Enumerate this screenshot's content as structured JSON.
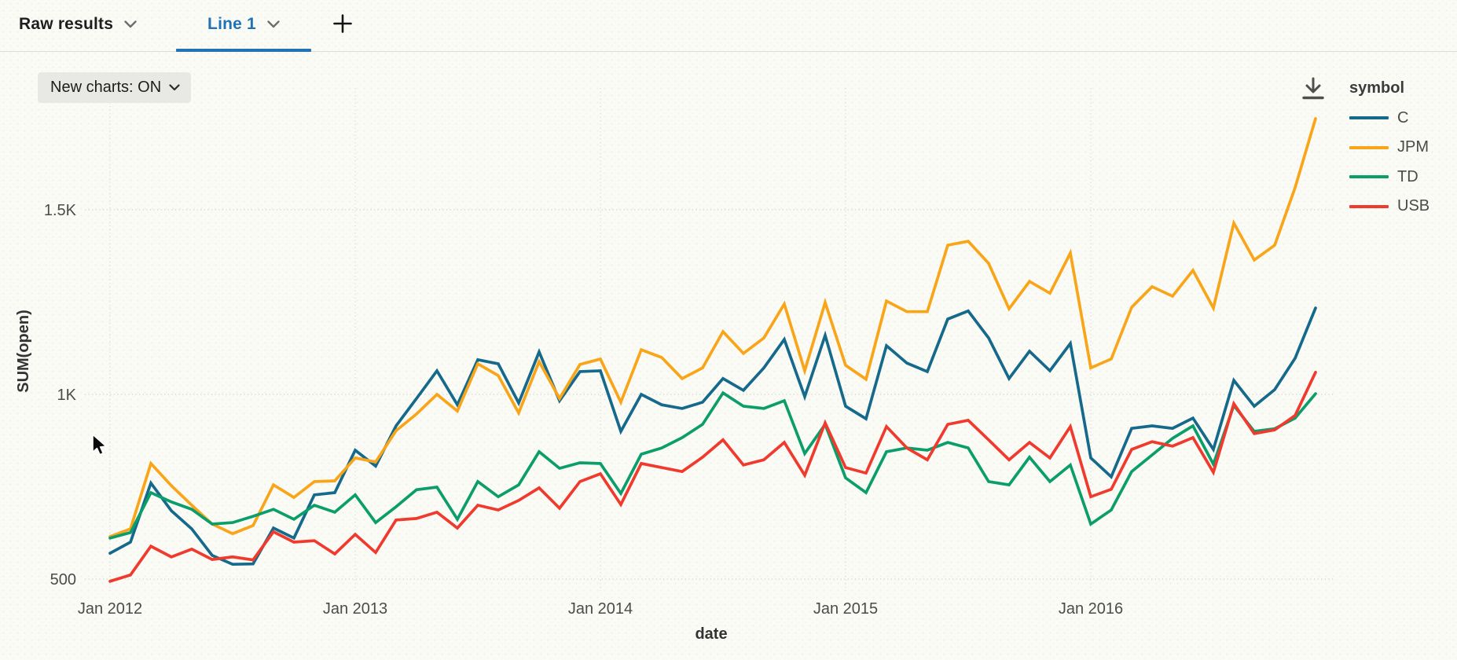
{
  "tabs": [
    {
      "label": "Raw results",
      "active": false
    },
    {
      "label": "Line 1",
      "active": true
    }
  ],
  "controls": {
    "new_charts_label": "New charts: ON",
    "add_tab_icon": "plus-icon",
    "download_icon": "download-icon"
  },
  "accent_colors": {
    "active_tab_blue": "#2272b8",
    "pill_background": "#e8e8e4"
  },
  "chart_data": {
    "type": "line",
    "title": "",
    "xlabel": "date",
    "ylabel": "SUM(open)",
    "legend_title": "symbol",
    "legend_position": "right",
    "grid": "dotted",
    "x_start": "Jan 2012",
    "x_end": "Dec 2016",
    "x_interval": "month",
    "ylim": [
      440,
      1840
    ],
    "y_ticks": [
      {
        "value": 500,
        "label": "500"
      },
      {
        "value": 1000,
        "label": "1K"
      },
      {
        "value": 1500,
        "label": "1.5K"
      }
    ],
    "x_ticks": [
      {
        "index": 0,
        "label": "Jan 2012"
      },
      {
        "index": 12,
        "label": "Jan 2013"
      },
      {
        "index": 24,
        "label": "Jan 2014"
      },
      {
        "index": 36,
        "label": "Jan 2015"
      },
      {
        "index": 48,
        "label": "Jan 2016"
      }
    ],
    "series": [
      {
        "name": "C",
        "color": "#15698b",
        "values": [
          570,
          600,
          760,
          685,
          636,
          564,
          540,
          541,
          638,
          611,
          728,
          734,
          849,
          806,
          915,
          989,
          1064,
          972,
          1094,
          1083,
          977,
          1115,
          983,
          1062,
          1064,
          900,
          1000,
          972,
          962,
          979,
          1043,
          1011,
          1072,
          1149,
          994,
          1160,
          968,
          934,
          1132,
          1085,
          1062,
          1204,
          1226,
          1153,
          1043,
          1117,
          1064,
          1138,
          828,
          777,
          908,
          915,
          908,
          936,
          851,
          1038,
          968,
          1013,
          1098,
          1234
        ]
      },
      {
        "name": "JPM",
        "color": "#f9a51a",
        "values": [
          615,
          636,
          813,
          753,
          700,
          649,
          623,
          645,
          755,
          721,
          764,
          766,
          828,
          817,
          902,
          947,
          1000,
          955,
          1083,
          1051,
          950,
          1089,
          989,
          1081,
          1096,
          979,
          1121,
          1100,
          1043,
          1072,
          1170,
          1111,
          1153,
          1245,
          1064,
          1249,
          1079,
          1041,
          1253,
          1224,
          1224,
          1404,
          1415,
          1355,
          1232,
          1306,
          1274,
          1383,
          1072,
          1096,
          1236,
          1292,
          1266,
          1336,
          1234,
          1464,
          1364,
          1404,
          1560,
          1747
        ]
      },
      {
        "name": "TD",
        "color": "#0b9e6a",
        "values": [
          611,
          626,
          734,
          709,
          689,
          649,
          653,
          670,
          689,
          662,
          700,
          681,
          728,
          653,
          696,
          742,
          749,
          662,
          764,
          723,
          755,
          845,
          800,
          815,
          813,
          732,
          838,
          855,
          883,
          919,
          1004,
          968,
          962,
          983,
          840,
          919,
          774,
          734,
          845,
          855,
          849,
          870,
          855,
          764,
          755,
          830,
          764,
          809,
          649,
          687,
          791,
          836,
          881,
          915,
          811,
          970,
          900,
          907,
          936,
          1002
        ]
      },
      {
        "name": "USB",
        "color": "#ef3a2d",
        "values": [
          494,
          511,
          589,
          560,
          581,
          553,
          560,
          552,
          628,
          600,
          604,
          568,
          621,
          572,
          660,
          664,
          681,
          638,
          700,
          687,
          713,
          747,
          692,
          764,
          785,
          702,
          813,
          802,
          791,
          830,
          877,
          809,
          823,
          870,
          781,
          923,
          802,
          787,
          913,
          855,
          823,
          919,
          930,
          877,
          823,
          870,
          828,
          913,
          723,
          743,
          851,
          872,
          860,
          883,
          789,
          975,
          894,
          904,
          943,
          1060
        ]
      }
    ]
  }
}
